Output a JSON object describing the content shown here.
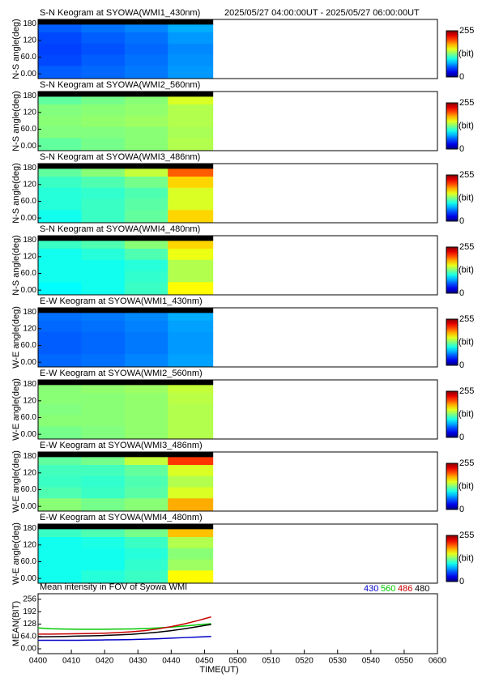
{
  "chart_data": [
    {
      "type": "heatmap",
      "title": "S-N Keogram at SYOWA(WMI1_430nm)",
      "subtitle": "2025/05/27 04:00:00UT - 2025/05/27 06:00:00UT",
      "ylabel": "N-S angle(deg)",
      "xlim": [
        0,
        120
      ],
      "ylim": [
        -17,
        195
      ],
      "yticks": [
        {
          "value": 0,
          "label": "0.00"
        },
        {
          "value": 60,
          "label": "60.0"
        },
        120,
        180
      ],
      "xbins": [
        0,
        13,
        26,
        39,
        52.5
      ],
      "ybins": [
        -17,
        30,
        70,
        110,
        150,
        178,
        195
      ],
      "z": [
        [
          55,
          58,
          62,
          70
        ],
        [
          50,
          55,
          60,
          68
        ],
        [
          48,
          52,
          58,
          66
        ],
        [
          50,
          55,
          60,
          70
        ],
        [
          55,
          60,
          65,
          75
        ],
        [
          null,
          null,
          null,
          null
        ]
      ],
      "clim": [
        0,
        255
      ],
      "cticks": [
        0,
        255
      ],
      "cbar_label": "(bit)",
      "nodata_color": "#000000"
    },
    {
      "type": "heatmap",
      "title": "S-N Keogram at SYOWA(WMI2_560nm)",
      "ylabel": "N-S angle(deg)",
      "xlim": [
        0,
        120
      ],
      "ylim": [
        -17,
        195
      ],
      "yticks": [
        {
          "value": 0,
          "label": "0.00"
        },
        {
          "value": 60,
          "label": "60.0"
        },
        120,
        180
      ],
      "xbins": [
        0,
        13,
        26,
        39,
        52.5
      ],
      "ybins": [
        -17,
        30,
        70,
        110,
        150,
        178,
        195
      ],
      "z": [
        [
          120,
          125,
          130,
          140
        ],
        [
          128,
          128,
          130,
          138
        ],
        [
          130,
          132,
          135,
          140
        ],
        [
          128,
          130,
          132,
          140
        ],
        [
          120,
          125,
          130,
          150
        ],
        [
          null,
          null,
          null,
          null
        ]
      ],
      "clim": [
        0,
        255
      ],
      "cticks": [
        0,
        255
      ],
      "cbar_label": "(bit)",
      "nodata_color": "#000000"
    },
    {
      "type": "heatmap",
      "title": "S-N Keogram at SYOWA(WMI3_486nm)",
      "ylabel": "N-S angle(deg)",
      "xlim": [
        0,
        120
      ],
      "ylim": [
        -17,
        195
      ],
      "yticks": [
        {
          "value": 0,
          "label": "0.00"
        },
        {
          "value": 60,
          "label": "60.0"
        },
        120,
        180
      ],
      "xbins": [
        0,
        13,
        26,
        39,
        52.5
      ],
      "ybins": [
        -17,
        30,
        70,
        110,
        150,
        178,
        195
      ],
      "z": [
        [
          100,
          110,
          120,
          170
        ],
        [
          105,
          110,
          118,
          150
        ],
        [
          105,
          108,
          115,
          150
        ],
        [
          110,
          115,
          125,
          170
        ],
        [
          120,
          130,
          145,
          200
        ],
        [
          null,
          null,
          null,
          null
        ]
      ],
      "clim": [
        0,
        255
      ],
      "cticks": [
        0,
        255
      ],
      "cbar_label": "(bit)",
      "nodata_color": "#000000"
    },
    {
      "type": "heatmap",
      "title": "S-N Keogram at SYOWA(WMI4_480nm)",
      "ylabel": "N-S angle(deg)",
      "xlim": [
        0,
        120
      ],
      "ylim": [
        -17,
        195
      ],
      "yticks": [
        {
          "value": 0,
          "label": "0.00"
        },
        {
          "value": 60,
          "label": "60.0"
        },
        120,
        180
      ],
      "xbins": [
        0,
        13,
        26,
        39,
        52.5
      ],
      "ybins": [
        -17,
        30,
        70,
        110,
        150,
        178,
        195
      ],
      "z": [
        [
          95,
          100,
          110,
          160
        ],
        [
          100,
          100,
          108,
          140
        ],
        [
          100,
          100,
          105,
          140
        ],
        [
          100,
          105,
          115,
          155
        ],
        [
          110,
          115,
          130,
          170
        ],
        [
          null,
          null,
          null,
          null
        ]
      ],
      "clim": [
        0,
        255
      ],
      "cticks": [
        0,
        255
      ],
      "cbar_label": "(bit)",
      "nodata_color": "#000000"
    },
    {
      "type": "heatmap",
      "title": "E-W Keogram at SYOWA(WMI1_430nm)",
      "ylabel": "W-E angle(deg)",
      "xlim": [
        0,
        120
      ],
      "ylim": [
        -17,
        195
      ],
      "yticks": [
        {
          "value": 0,
          "label": "0.00"
        },
        {
          "value": 60,
          "label": "60.0"
        },
        120,
        180
      ],
      "xbins": [
        0,
        13,
        26,
        39,
        52.5
      ],
      "ybins": [
        -17,
        30,
        70,
        110,
        150,
        178,
        195
      ],
      "z": [
        [
          58,
          60,
          65,
          72
        ],
        [
          55,
          58,
          62,
          70
        ],
        [
          55,
          58,
          62,
          70
        ],
        [
          58,
          60,
          64,
          72
        ],
        [
          60,
          62,
          66,
          75
        ],
        [
          null,
          null,
          null,
          null
        ]
      ],
      "clim": [
        0,
        255
      ],
      "cticks": [
        0,
        255
      ],
      "cbar_label": "(bit)",
      "nodata_color": "#000000"
    },
    {
      "type": "heatmap",
      "title": "E-W Keogram at SYOWA(WMI2_560nm)",
      "ylabel": "W-E angle(deg)",
      "xlim": [
        0,
        120
      ],
      "ylim": [
        -17,
        195
      ],
      "yticks": [
        {
          "value": 0,
          "label": "0.00"
        },
        {
          "value": 60,
          "label": "60.0"
        },
        120,
        180
      ],
      "xbins": [
        0,
        13,
        26,
        39,
        52.5
      ],
      "ybins": [
        -17,
        30,
        70,
        110,
        150,
        178,
        195
      ],
      "z": [
        [
          125,
          128,
          132,
          140
        ],
        [
          130,
          130,
          132,
          140
        ],
        [
          128,
          130,
          132,
          140
        ],
        [
          130,
          130,
          132,
          142
        ],
        [
          130,
          132,
          135,
          145
        ],
        [
          null,
          null,
          null,
          null
        ]
      ],
      "clim": [
        0,
        255
      ],
      "cticks": [
        0,
        255
      ],
      "cbar_label": "(bit)",
      "nodata_color": "#000000"
    },
    {
      "type": "heatmap",
      "title": "E-W Keogram at SYOWA(WMI3_486nm)",
      "ylabel": "W-E angle(deg)",
      "xlim": [
        0,
        120
      ],
      "ylim": [
        -17,
        195
      ],
      "yticks": [
        {
          "value": 0,
          "label": "0.00"
        },
        {
          "value": 60,
          "label": "60.0"
        },
        120,
        180
      ],
      "xbins": [
        0,
        13,
        26,
        39,
        52.5
      ],
      "ybins": [
        -17,
        30,
        70,
        110,
        150,
        178,
        195
      ],
      "z": [
        [
          130,
          125,
          130,
          180
        ],
        [
          115,
          110,
          118,
          150
        ],
        [
          110,
          108,
          115,
          140
        ],
        [
          112,
          112,
          120,
          150
        ],
        [
          120,
          125,
          145,
          210
        ],
        [
          null,
          null,
          null,
          null
        ]
      ],
      "clim": [
        0,
        255
      ],
      "cticks": [
        0,
        255
      ],
      "cbar_label": "(bit)",
      "nodata_color": "#000000"
    },
    {
      "type": "heatmap",
      "title": "E-W Keogram at SYOWA(WMI4_480nm)",
      "ylabel": "W-E angle(deg)",
      "xlim": [
        0,
        120
      ],
      "ylim": [
        -17,
        195
      ],
      "yticks": [
        {
          "value": 0,
          "label": "0.00"
        },
        {
          "value": 60,
          "label": "60.0"
        },
        120,
        180
      ],
      "xbins": [
        0,
        13,
        26,
        39,
        52.5
      ],
      "ybins": [
        -17,
        30,
        70,
        110,
        150,
        178,
        195
      ],
      "z": [
        [
          100,
          105,
          110,
          160
        ],
        [
          100,
          100,
          108,
          135
        ],
        [
          100,
          100,
          105,
          130
        ],
        [
          100,
          102,
          110,
          140
        ],
        [
          110,
          115,
          125,
          175
        ],
        [
          null,
          null,
          null,
          null
        ]
      ],
      "clim": [
        0,
        255
      ],
      "cticks": [
        0,
        255
      ],
      "cbar_label": "(bit)",
      "nodata_color": "#000000"
    },
    {
      "type": "line",
      "title": "Mean intensity in FOV of Syowa WMI",
      "ylabel": "MEAN(BIT)",
      "xlabel": "TIME(UT)",
      "xlim": [
        0,
        120
      ],
      "ylim": [
        -25,
        285
      ],
      "xticks": [
        {
          "value": 0,
          "label": "0400"
        },
        {
          "value": 10,
          "label": "0410"
        },
        {
          "value": 20,
          "label": "0420"
        },
        {
          "value": 30,
          "label": "0430"
        },
        {
          "value": 40,
          "label": "0440"
        },
        {
          "value": 50,
          "label": "0450"
        },
        {
          "value": 60,
          "label": "0500"
        },
        {
          "value": 70,
          "label": "0510"
        },
        {
          "value": 80,
          "label": "0520"
        },
        {
          "value": 90,
          "label": "0530"
        },
        {
          "value": 100,
          "label": "0540"
        },
        {
          "value": 110,
          "label": "0550"
        },
        {
          "value": 120,
          "label": "0600"
        }
      ],
      "yticks": [
        {
          "value": 0,
          "label": "0.00"
        },
        {
          "value": 64,
          "label": "64.0"
        },
        128,
        192,
        256
      ],
      "x": [
        0,
        4,
        8,
        12,
        16,
        20,
        24,
        28,
        32,
        36,
        40,
        44,
        48,
        52
      ],
      "series": [
        {
          "name": "430",
          "color": "#0000c8",
          "values": [
            44,
            44,
            44,
            44,
            45,
            46,
            47,
            48,
            50,
            52,
            55,
            58,
            61,
            64
          ]
        },
        {
          "name": "560",
          "color": "#00c800",
          "values": [
            108,
            104,
            102,
            101,
            101,
            101,
            102,
            103,
            105,
            108,
            112,
            118,
            124,
            130
          ]
        },
        {
          "name": "486",
          "color": "#c80000",
          "values": [
            76,
            76,
            77,
            78,
            79,
            81,
            84,
            88,
            94,
            103,
            115,
            129,
            146,
            165
          ]
        },
        {
          "name": "480",
          "color": "#000000",
          "values": [
            62,
            63,
            64,
            66,
            67,
            69,
            72,
            75,
            80,
            86,
            94,
            104,
            115,
            126
          ]
        }
      ]
    }
  ]
}
